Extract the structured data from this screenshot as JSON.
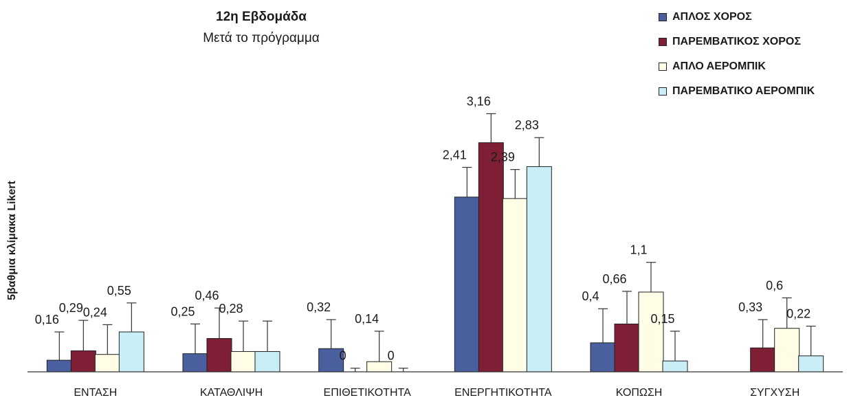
{
  "chart_data": {
    "type": "bar",
    "title": "12η Εβδομάδα",
    "subtitle": "Μετά το πρόγραμμα",
    "ylabel": "5βαθμια κλίμακα Likert",
    "xlabel": "",
    "ylim": [
      0,
      3.6
    ],
    "grid": false,
    "legend_position": "top-right",
    "categories": [
      "ΕΝΤΑΣΗ",
      "ΚΑΤΑΘΛΙΨΗ",
      "ΕΠΙΘΕΤΙΚΟΤΗΤΑ",
      "ΕΝΕΡΓΗΤΙΚΟΤΗΤΑ",
      "ΚΟΠΩΣΗ",
      "ΣΥΓΧΥΣΗ"
    ],
    "series": [
      {
        "name": "ΑΠΛΟΣ ΧΟΡΟΣ",
        "color": "#4a5f9e",
        "values": [
          0.16,
          0.25,
          0.32,
          2.41,
          0.4,
          null
        ],
        "errors": [
          0.39,
          0.41,
          0.4,
          0.41,
          0.47,
          null
        ],
        "labels": [
          "0,16",
          "0,25",
          "0,32",
          "2,41",
          "0,4",
          ""
        ]
      },
      {
        "name": "ΠΑΡΕΜΒΑΤΙΚΟΣ ΧΟΡΟΣ",
        "color": "#7f1f35",
        "values": [
          0.29,
          0.46,
          0,
          3.16,
          0.66,
          0.33
        ],
        "errors": [
          0.42,
          0.42,
          0.05,
          0.4,
          0.45,
          0.39
        ],
        "labels": [
          "0,29",
          "0,46",
          "0",
          "3,16",
          "0,66",
          "0,33"
        ]
      },
      {
        "name": "ΑΠΛΟ ΑΕΡΟΜΠΙΚ",
        "color": "#fffde6",
        "values": [
          0.24,
          0.28,
          0.14,
          2.39,
          1.1,
          0.6
        ],
        "errors": [
          0.41,
          0.42,
          0.42,
          0.4,
          0.41,
          0.42
        ],
        "labels": [
          "0,24",
          "0,28",
          "0,14",
          "2,39",
          "1,1",
          "0,6"
        ]
      },
      {
        "name": "ΠΑΡΕΜΒΑΤΙΚΟ ΑΕΡΟΜΠΙΚ",
        "color": "#c9eef7",
        "values": [
          0.55,
          0.28,
          0,
          2.83,
          0.15,
          0.22
        ],
        "errors": [
          0.4,
          0.42,
          0.05,
          0.4,
          0.41,
          0.41
        ],
        "labels": [
          "0,55",
          "",
          "0",
          "2,83",
          "0,15",
          "0,22"
        ]
      }
    ]
  }
}
